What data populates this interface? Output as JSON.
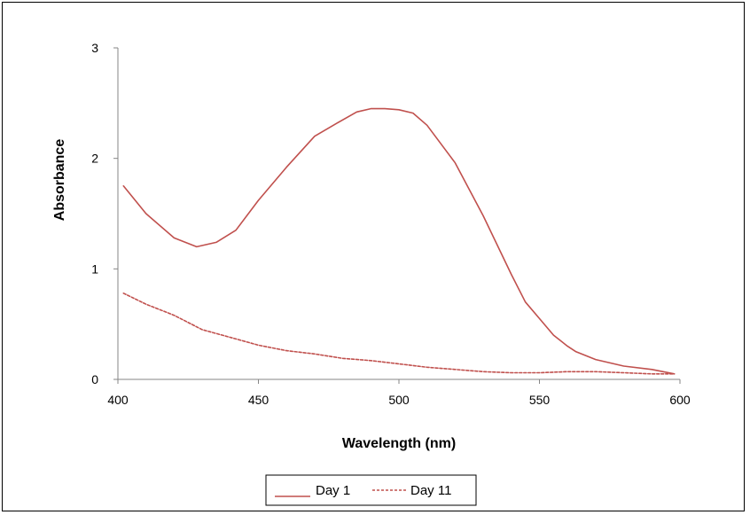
{
  "chart_data": {
    "type": "line",
    "title": "",
    "xlabel": "Wavelength (nm)",
    "ylabel": "Absorbance",
    "xlim": [
      400,
      600
    ],
    "ylim": [
      0,
      3
    ],
    "xticks": [
      "400",
      "450",
      "500",
      "550",
      "600"
    ],
    "yticks": [
      "0",
      "1",
      "2",
      "3"
    ],
    "grid": false,
    "legend_position": "bottom-center",
    "colors": {
      "series": "#c0504d",
      "axis": "#868686"
    },
    "series": [
      {
        "name": "Day 1",
        "style": "solid",
        "x": [
          402,
          410,
          420,
          428,
          435,
          442,
          450,
          460,
          470,
          478,
          485,
          490,
          495,
          500,
          505,
          510,
          520,
          530,
          540,
          545,
          550,
          555,
          560,
          563,
          570,
          580,
          590,
          598
        ],
        "y": [
          1.75,
          1.5,
          1.28,
          1.2,
          1.24,
          1.35,
          1.62,
          1.92,
          2.2,
          2.32,
          2.42,
          2.45,
          2.45,
          2.44,
          2.41,
          2.3,
          1.96,
          1.48,
          0.95,
          0.7,
          0.55,
          0.4,
          0.3,
          0.25,
          0.18,
          0.12,
          0.09,
          0.05
        ]
      },
      {
        "name": "Day 11",
        "style": "dashed",
        "x": [
          402,
          410,
          420,
          430,
          440,
          450,
          460,
          470,
          480,
          490,
          500,
          510,
          520,
          530,
          540,
          550,
          560,
          570,
          580,
          590,
          598
        ],
        "y": [
          0.78,
          0.68,
          0.58,
          0.45,
          0.38,
          0.31,
          0.26,
          0.23,
          0.19,
          0.17,
          0.14,
          0.11,
          0.09,
          0.07,
          0.06,
          0.06,
          0.07,
          0.07,
          0.06,
          0.05,
          0.05
        ]
      }
    ]
  }
}
